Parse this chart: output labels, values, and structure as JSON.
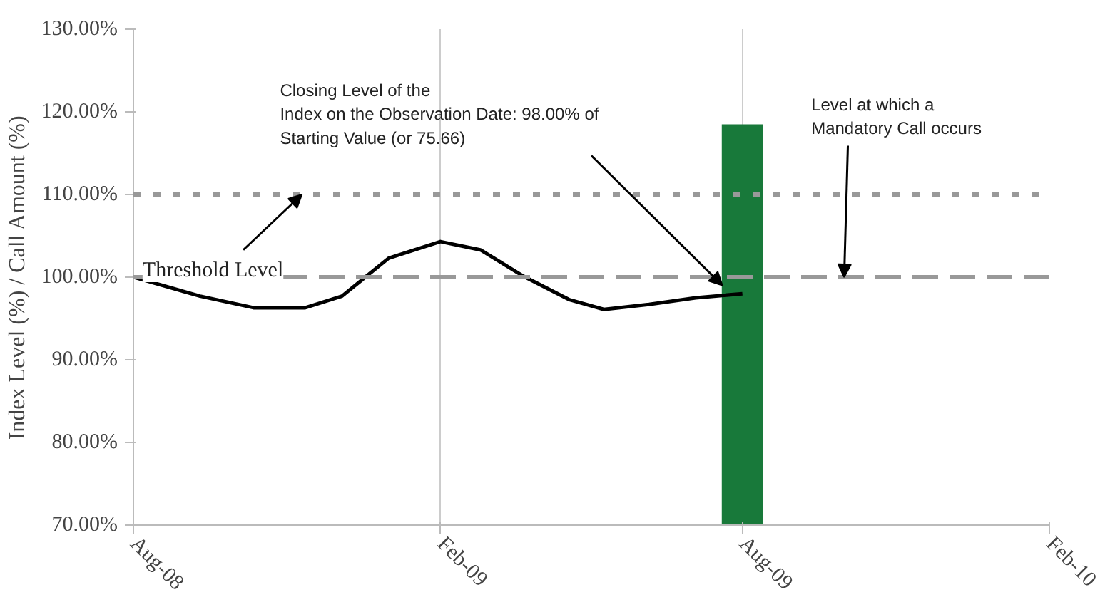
{
  "chart_data": {
    "type": "line",
    "ylabel": "Index Level (%) / Call Amount (%)",
    "xlim": [
      "2008-08-01",
      "2010-02-01"
    ],
    "xticks": [
      {
        "value": "2008-08-01",
        "label": "Aug-08"
      },
      {
        "value": "2009-02-01",
        "label": "Feb-09"
      },
      {
        "value": "2009-08-01",
        "label": "Aug-09"
      },
      {
        "value": "2010-02-01",
        "label": "Feb-10"
      }
    ],
    "ylim": [
      70,
      130
    ],
    "yticks": [
      {
        "value": 70,
        "label": "70.00%"
      },
      {
        "value": 80,
        "label": "80.00%"
      },
      {
        "value": 90,
        "label": "90.00%"
      },
      {
        "value": 100,
        "label": "100.00%"
      },
      {
        "value": 110,
        "label": "110.00%"
      },
      {
        "value": 120,
        "label": "120.00%"
      },
      {
        "value": 130,
        "label": "130.00%"
      }
    ],
    "grid": "x",
    "series": [
      {
        "type": "bar",
        "color": "#18793a",
        "x": [
          "2009-08-01"
        ],
        "values": [
          118.5
        ]
      },
      {
        "color": "#000000",
        "x": [
          "2008-08-01",
          "2008-09-10",
          "2008-10-12",
          "2008-11-12",
          "2008-12-04",
          "2009-01-01",
          "2009-02-01",
          "2009-02-25",
          "2009-03-22",
          "2009-04-19",
          "2009-05-10",
          "2009-06-06",
          "2009-07-04",
          "2009-08-01"
        ],
        "values": [
          100,
          97.7,
          96.3,
          96.3,
          97.7,
          102.3,
          104.3,
          103.3,
          100.2,
          97.3,
          96.1,
          96.7,
          97.5,
          98
        ]
      }
    ],
    "ref_lines": [
      {
        "axis": "y",
        "value": 110,
        "color": "#999999",
        "line_style": "dotted"
      },
      {
        "axis": "y",
        "value": 100,
        "color": "#999999",
        "line_style": "dashed"
      }
    ],
    "annotations": [
      {
        "text": "Closing Level of the\nIndex on the Observation Date: 98.00% of\nStarting Value (or 75.66)",
        "x": "2009-07-20",
        "y": 99
      },
      {
        "text": "Threshold Level",
        "x": "2008-11-10",
        "y": 110
      },
      {
        "text": "Level at which a\nMandatory Call occurs",
        "x": "2009-10-01",
        "y": 100
      }
    ]
  }
}
